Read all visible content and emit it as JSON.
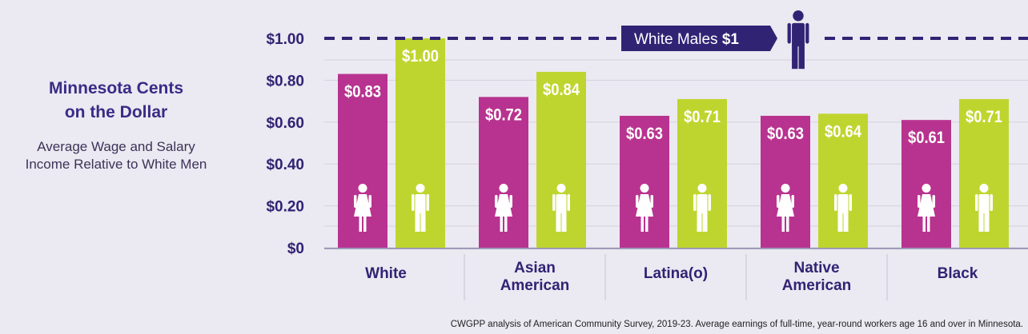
{
  "left_panel": {
    "title_line1": "Minnesota Cents",
    "title_line2": "on the Dollar",
    "subtitle_line1": "Average Wage and Salary",
    "subtitle_line2": "Income Relative to White Men"
  },
  "reference_label": {
    "prefix": "White Males",
    "value": "$1"
  },
  "footnote": "CWGPP analysis of American Community Survey, 2019-23. Average earnings of full-time, year-round workers age 16 and over in Minnesota.",
  "colors": {
    "women": "#b8338f",
    "men": "#bfd52f",
    "accent": "#312374",
    "background": "#ebe9f1"
  },
  "chart_data": {
    "type": "bar",
    "title": "Minnesota Cents on the Dollar",
    "subtitle": "Average Wage and Salary Income Relative to White Men",
    "categories": [
      [
        "White"
      ],
      [
        "Asian",
        "American"
      ],
      [
        "Latina(o)"
      ],
      [
        "Native",
        "American"
      ],
      [
        "Black"
      ]
    ],
    "series": [
      {
        "name": "Women",
        "icon": "woman-icon",
        "values": [
          0.83,
          0.72,
          0.63,
          0.63,
          0.61
        ],
        "labels": [
          "$0.83",
          "$0.72",
          "$0.63",
          "$0.63",
          "$0.61"
        ]
      },
      {
        "name": "Men",
        "icon": "man-icon",
        "values": [
          1.0,
          0.84,
          0.71,
          0.64,
          0.71
        ],
        "labels": [
          "$1.00",
          "$0.84",
          "$0.71",
          "$0.64",
          "$0.71"
        ]
      }
    ],
    "ylim": [
      0,
      1
    ],
    "yticks": [
      0,
      0.2,
      0.4,
      0.6,
      0.8,
      1.0
    ],
    "ytick_labels": [
      "$0",
      "$0.20",
      "$0.40",
      "$0.60",
      "$0.80",
      "$1.00"
    ],
    "reference_line": {
      "value": 1.0,
      "style": "dashed"
    },
    "grid": true
  }
}
